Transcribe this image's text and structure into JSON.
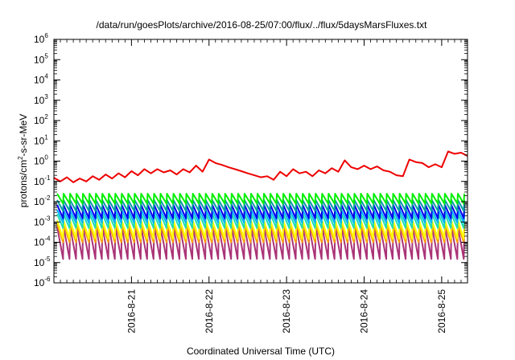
{
  "chart_data": {
    "type": "line",
    "title": "/data/run/goesPlots/archive/2016-08-25/07:00/flux/../flux/5daysMarsFluxes.txt",
    "xlabel": "Coordinated Universal Time (UTC)",
    "ylabel": {
      "prefix": "protons/cm",
      "superscript": "2",
      "suffix": "-s-sr-MeV"
    },
    "y_scale": "log",
    "ylim": [
      1e-06,
      1000000.0
    ],
    "y_ticks": [
      {
        "base": "10",
        "exp": "-6"
      },
      {
        "base": "10",
        "exp": "-5"
      },
      {
        "base": "10",
        "exp": "-4"
      },
      {
        "base": "10",
        "exp": "-3"
      },
      {
        "base": "10",
        "exp": "-2"
      },
      {
        "base": "10",
        "exp": "-1"
      },
      {
        "base": "10",
        "exp": "0"
      },
      {
        "base": "10",
        "exp": "1"
      },
      {
        "base": "10",
        "exp": "2"
      },
      {
        "base": "10",
        "exp": "3"
      },
      {
        "base": "10",
        "exp": "4"
      },
      {
        "base": "10",
        "exp": "5"
      },
      {
        "base": "10",
        "exp": "6"
      }
    ],
    "x_range": [
      "2016-08-20T00:00",
      "2016-08-25T08:00"
    ],
    "x_ticks": [
      {
        "label": "2016-8-21",
        "date": "2016-08-21"
      },
      {
        "label": "2016-8-22",
        "date": "2016-08-22"
      },
      {
        "label": "2016-8-23",
        "date": "2016-08-23"
      },
      {
        "label": "2016-8-24",
        "date": "2016-08-24"
      },
      {
        "label": "2016-8-25",
        "date": "2016-08-25"
      }
    ],
    "sawtooth_period_hours": 2,
    "series": [
      {
        "color": "#ee0000",
        "points": [
          [
            "2016-08-20T00:00",
            0.15
          ],
          [
            "2016-08-20T02:00",
            0.1
          ],
          [
            "2016-08-20T04:00",
            0.16
          ],
          [
            "2016-08-20T06:00",
            0.09
          ],
          [
            "2016-08-20T08:00",
            0.14
          ],
          [
            "2016-08-20T10:00",
            0.1
          ],
          [
            "2016-08-20T12:00",
            0.18
          ],
          [
            "2016-08-20T14:00",
            0.12
          ],
          [
            "2016-08-20T16:00",
            0.22
          ],
          [
            "2016-08-20T18:00",
            0.14
          ],
          [
            "2016-08-20T20:00",
            0.25
          ],
          [
            "2016-08-20T22:00",
            0.16
          ],
          [
            "2016-08-21T00:00",
            0.32
          ],
          [
            "2016-08-21T02:00",
            0.2
          ],
          [
            "2016-08-21T04:00",
            0.4
          ],
          [
            "2016-08-21T06:00",
            0.25
          ],
          [
            "2016-08-21T08:00",
            0.4
          ],
          [
            "2016-08-21T10:00",
            0.28
          ],
          [
            "2016-08-21T12:00",
            0.35
          ],
          [
            "2016-08-21T14:00",
            0.22
          ],
          [
            "2016-08-21T16:00",
            0.4
          ],
          [
            "2016-08-21T18:00",
            0.28
          ],
          [
            "2016-08-21T20:00",
            0.6
          ],
          [
            "2016-08-21T22:00",
            0.3
          ],
          [
            "2016-08-22T00:00",
            1.2
          ],
          [
            "2016-08-22T02:00",
            0.8
          ],
          [
            "2016-08-22T04:00",
            0.65
          ],
          [
            "2016-08-22T06:00",
            0.5
          ],
          [
            "2016-08-22T08:00",
            0.4
          ],
          [
            "2016-08-22T10:00",
            0.32
          ],
          [
            "2016-08-22T12:00",
            0.25
          ],
          [
            "2016-08-22T14:00",
            0.2
          ],
          [
            "2016-08-22T16:00",
            0.16
          ],
          [
            "2016-08-22T18:00",
            0.18
          ],
          [
            "2016-08-22T20:00",
            0.12
          ],
          [
            "2016-08-22T22:00",
            0.3
          ],
          [
            "2016-08-23T00:00",
            0.18
          ],
          [
            "2016-08-23T02:00",
            0.4
          ],
          [
            "2016-08-23T04:00",
            0.25
          ],
          [
            "2016-08-23T06:00",
            0.3
          ],
          [
            "2016-08-23T08:00",
            0.18
          ],
          [
            "2016-08-23T10:00",
            0.35
          ],
          [
            "2016-08-23T12:00",
            0.25
          ],
          [
            "2016-08-23T14:00",
            0.45
          ],
          [
            "2016-08-23T16:00",
            0.3
          ],
          [
            "2016-08-23T18:00",
            1.1
          ],
          [
            "2016-08-23T20:00",
            0.5
          ],
          [
            "2016-08-23T22:00",
            0.4
          ],
          [
            "2016-08-24T00:00",
            0.6
          ],
          [
            "2016-08-24T02:00",
            0.4
          ],
          [
            "2016-08-24T04:00",
            0.55
          ],
          [
            "2016-08-24T06:00",
            0.35
          ],
          [
            "2016-08-24T08:00",
            0.3
          ],
          [
            "2016-08-24T10:00",
            0.2
          ],
          [
            "2016-08-24T12:00",
            0.18
          ],
          [
            "2016-08-24T14:00",
            1.2
          ],
          [
            "2016-08-24T16:00",
            0.9
          ],
          [
            "2016-08-24T18:00",
            0.8
          ],
          [
            "2016-08-24T20:00",
            0.5
          ],
          [
            "2016-08-24T22:00",
            0.7
          ],
          [
            "2016-08-25T00:00",
            0.5
          ],
          [
            "2016-08-25T02:00",
            3.0
          ],
          [
            "2016-08-25T04:00",
            2.3
          ],
          [
            "2016-08-25T06:00",
            2.6
          ],
          [
            "2016-08-25T08:00",
            1.8
          ]
        ]
      },
      {
        "color": "#00ee00",
        "sawtooth": {
          "start": "2016-08-20T01:00",
          "end": "2016-08-25T08:00",
          "peak": 0.025,
          "trough": 0.008
        }
      },
      {
        "color": "#00a0a0",
        "sawtooth": {
          "start": "2016-08-20T01:00",
          "end": "2016-08-25T08:00",
          "peak": 0.012,
          "trough": 0.0035
        }
      },
      {
        "color": "#0000ee",
        "sawtooth": {
          "start": "2016-08-20T01:00",
          "end": "2016-08-25T08:00",
          "peak": 0.007,
          "trough": 0.0015
        }
      },
      {
        "color": "#00b4ff",
        "sawtooth": {
          "start": "2016-08-20T01:00",
          "end": "2016-08-25T08:00",
          "peak": 0.004,
          "trough": 0.0009
        }
      },
      {
        "color": "#22ddaa",
        "sawtooth": {
          "start": "2016-08-20T01:00",
          "end": "2016-08-25T08:00",
          "peak": 0.0025,
          "trough": 0.0005
        }
      },
      {
        "color": "#ffff00",
        "sawtooth": {
          "start": "2016-08-20T01:00",
          "end": "2016-08-25T08:00",
          "peak": 0.0012,
          "trough": 0.00015
        }
      },
      {
        "color": "#ffa000",
        "sawtooth": {
          "start": "2016-08-20T01:00",
          "end": "2016-08-25T08:00",
          "peak": 0.0008,
          "trough": 0.0001
        }
      },
      {
        "color": "#aa3377",
        "sawtooth": {
          "start": "2016-08-20T01:00",
          "end": "2016-08-25T08:00",
          "peak": 0.0006,
          "trough": 1.5e-05
        }
      }
    ]
  }
}
